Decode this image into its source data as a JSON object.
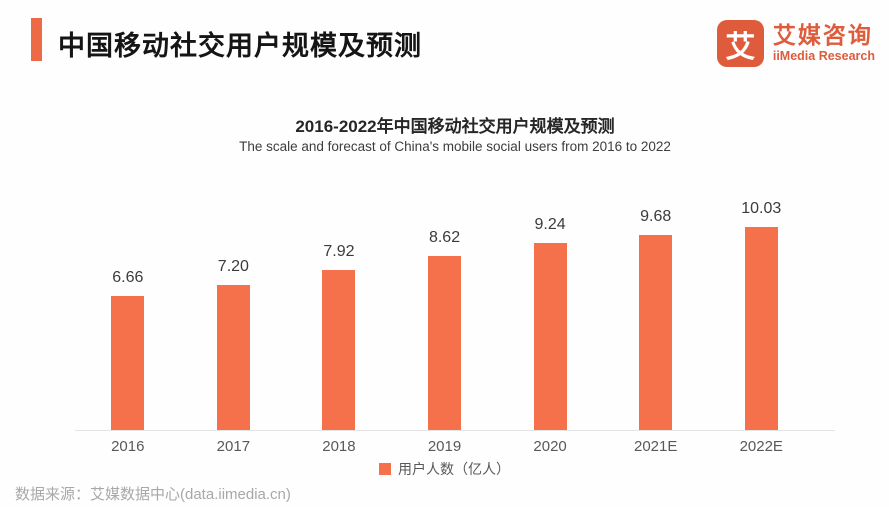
{
  "header": {
    "title": "中国移动社交用户规模及预测",
    "logo": {
      "mark": "艾",
      "cn": "艾媒咨询",
      "en": "iiMedia Research"
    }
  },
  "chart_data": {
    "type": "bar",
    "title": "2016-2022年中国移动社交用户规模及预测",
    "subtitle": "The scale and forecast of China's mobile social users from 2016 to 2022",
    "categories": [
      "2016",
      "2017",
      "2018",
      "2019",
      "2020",
      "2021E",
      "2022E"
    ],
    "values": [
      6.66,
      7.2,
      7.92,
      8.62,
      9.24,
      9.68,
      10.03
    ],
    "series_label": "用户人数（亿人）",
    "ylim": [
      0,
      10.5
    ],
    "grid": false,
    "legend_position": "bottom",
    "bar_color": "#f5714b",
    "value_labels_shown": true
  },
  "footer": {
    "source": "数据来源：艾媒数据中心(data.iimedia.cn)"
  },
  "colors": {
    "accent_bar": "#ec6a46",
    "logo": "#de5c3b",
    "bar": "#f5714b",
    "axis_line": "#e4e4e4"
  }
}
